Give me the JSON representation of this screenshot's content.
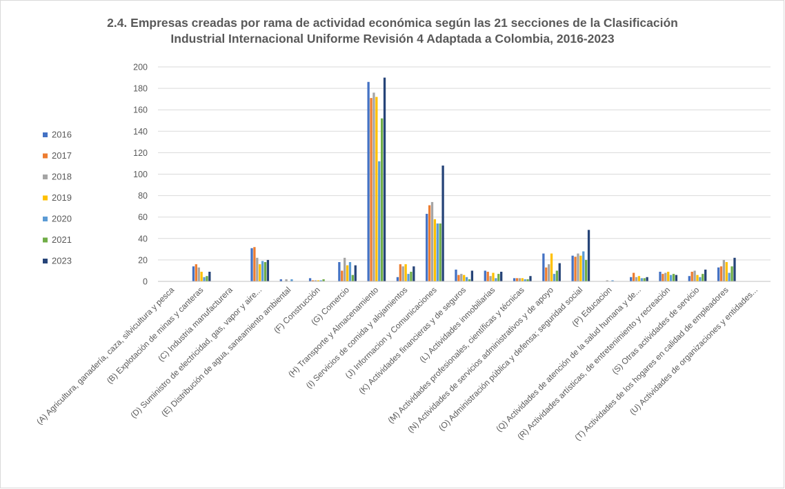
{
  "chart_data": {
    "type": "bar",
    "title": "2.4. Empresas creadas por rama de actividad económica según las 21 secciones de la Clasificación Industrial Internacional Uniforme Revisión 4 Adaptada a Colombia, 2016-2023",
    "title_lines": [
      "2.4. Empresas creadas por rama de actividad económica según las 21 secciones de la Clasificación",
      "Industrial Internacional Uniforme Revisión 4 Adaptada a Colombia, 2016-2023"
    ],
    "xlabel": "",
    "ylabel": "",
    "ylim": [
      0,
      200
    ],
    "yticks": [
      0,
      20,
      40,
      60,
      80,
      100,
      120,
      140,
      160,
      180,
      200
    ],
    "grid": true,
    "legend_position": "left",
    "categories": [
      "(A) Agricultura, ganadería, caza, silvicultura y pesca",
      "(B) Explotación de minas y canteras",
      "(C) Industria manufacturera",
      "(D) Suministro de electricidad, gas, vapor y aire...",
      "(E) Distribución de agua, saneamiento ambiental",
      "(F) Construcción",
      "(G) Comercio",
      "(H) Transporte y Almacenamiento",
      "(I) Servicios de comida y alojamientos",
      "(J) Informacion y Comunicaciones",
      "(K) Actividades financieras y de seguros",
      "(L) Actividades inmobiliarias",
      "(M) Actividades profesionales, científicas y técnicas",
      "(N) Actividades de servicios administrativos y de apoyo",
      "(O) Administración pública y defensa; seguridad social",
      "(P) Educacion",
      "(Q) Actividades de atención de la salud humana y de...",
      "(R) Actividades artísticas, de entretenimiento y recreación",
      "(S) Otras actividades de servicio",
      "(T) Actividades de los hogares en calidad de empleadores",
      "(U) Actividades de organizaciones y entidades..."
    ],
    "series": [
      {
        "name": "2016",
        "color": "#4472C4",
        "values": [
          0,
          14,
          0,
          31,
          2,
          3,
          18,
          186,
          4,
          63,
          11,
          10,
          3,
          26,
          24,
          0,
          4,
          9,
          5,
          13,
          0
        ]
      },
      {
        "name": "2017",
        "color": "#ED7D31",
        "values": [
          0,
          16,
          0,
          32,
          0,
          1,
          10,
          171,
          16,
          71,
          6,
          9,
          3,
          13,
          23,
          0,
          8,
          7,
          9,
          14,
          0
        ]
      },
      {
        "name": "2018",
        "color": "#A5A5A5",
        "values": [
          0,
          13,
          0,
          22,
          2,
          1,
          22,
          176,
          14,
          74,
          7,
          5,
          3,
          16,
          26,
          1,
          4,
          8,
          10,
          20,
          0
        ]
      },
      {
        "name": "2019",
        "color": "#FFC000",
        "values": [
          0,
          9,
          0,
          16,
          0,
          1,
          15,
          172,
          16,
          58,
          6,
          8,
          3,
          26,
          24,
          0,
          5,
          9,
          6,
          18,
          0
        ]
      },
      {
        "name": "2020",
        "color": "#5B9BD5",
        "values": [
          0,
          4,
          0,
          19,
          2,
          1,
          18,
          112,
          7,
          54,
          4,
          3,
          2,
          7,
          28,
          1,
          3,
          6,
          4,
          8,
          0
        ]
      },
      {
        "name": "2021",
        "color": "#70AD47",
        "values": [
          0,
          5,
          0,
          18,
          0,
          2,
          6,
          152,
          9,
          54,
          2,
          7,
          2,
          10,
          20,
          0,
          3,
          7,
          7,
          14,
          0
        ]
      },
      {
        "name": "2023",
        "color": "#264478",
        "values": [
          0,
          9,
          0,
          20,
          0,
          0,
          15,
          190,
          14,
          108,
          10,
          9,
          5,
          17,
          48,
          0,
          4,
          6,
          11,
          22,
          0
        ]
      }
    ]
  }
}
